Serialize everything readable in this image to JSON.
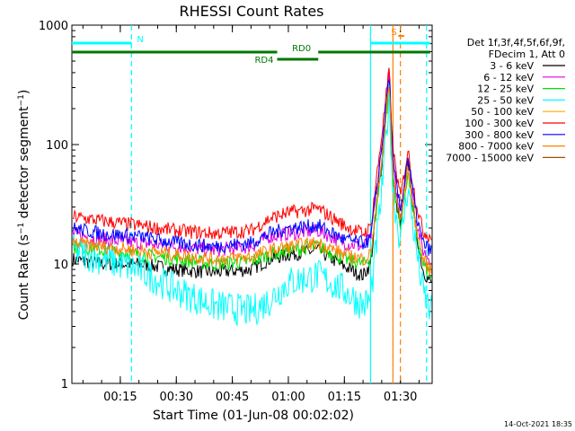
{
  "chart_data": {
    "type": "line",
    "title": "RHESSI Count Rates",
    "xlabel": "Start Time (01-Jun-08 00:02:02)",
    "ylabel": "Count Rate (s^-1 detector segment^-1)",
    "ylabel_main": "Count Rate (s",
    "ylabel_sup1": "−1",
    "ylabel_mid": " detector segment",
    "ylabel_sup2": "−1",
    "ylabel_end": ")",
    "y_scale": "log",
    "ylim": [
      1,
      1000
    ],
    "xlim": [
      "00:02:02",
      "01:38:30"
    ],
    "x_ticks": [
      "00:15",
      "00:30",
      "00:45",
      "01:00",
      "01:15",
      "01:30"
    ],
    "y_ticks": [
      "1",
      "10",
      "100",
      "1000"
    ],
    "legend_header": [
      "Det 1f,3f,4f,5f,6f,9f,",
      "FDecim 1, Att 0"
    ],
    "legend_position": "right",
    "series": [
      {
        "name": "3 - 6 keV",
        "color": "#000000",
        "x": [
          "00:02",
          "00:10",
          "00:20",
          "00:30",
          "00:40",
          "00:50",
          "00:55",
          "01:00",
          "01:08",
          "01:15",
          "01:20",
          "01:22",
          "01:25",
          "01:27",
          "01:28",
          "01:30",
          "01:32",
          "01:34",
          "01:36",
          "01:38"
        ],
        "y": [
          11,
          10,
          10,
          9,
          8.5,
          9,
          11,
          12,
          13,
          9.5,
          8,
          10,
          70,
          420,
          50,
          20,
          80,
          20,
          9,
          7
        ]
      },
      {
        "name": "6 - 12 keV",
        "color": "#e000e0",
        "x": [
          "00:02",
          "00:10",
          "00:20",
          "00:30",
          "00:40",
          "00:50",
          "00:55",
          "01:00",
          "01:08",
          "01:15",
          "01:20",
          "01:22",
          "01:25",
          "01:27",
          "01:28",
          "01:30",
          "01:32",
          "01:34",
          "01:36",
          "01:38"
        ],
        "y": [
          18,
          16,
          15,
          14,
          13,
          14,
          17,
          18,
          19,
          15,
          14,
          16,
          90,
          380,
          60,
          25,
          75,
          25,
          13,
          11
        ]
      },
      {
        "name": "12 - 25 keV",
        "color": "#00e000",
        "x": [
          "00:02",
          "00:10",
          "00:20",
          "00:30",
          "00:40",
          "00:50",
          "00:55",
          "01:00",
          "01:08",
          "01:15",
          "01:20",
          "01:22",
          "01:25",
          "01:27",
          "01:28",
          "01:30",
          "01:32",
          "01:34",
          "01:36",
          "01:38"
        ],
        "y": [
          14,
          13,
          12,
          11,
          10,
          10.5,
          12,
          13,
          14,
          11,
          10,
          11,
          70,
          300,
          50,
          20,
          60,
          20,
          10,
          8
        ]
      },
      {
        "name": "25 - 50 keV",
        "color": "#00ffff",
        "x": [
          "00:02",
          "00:10",
          "00:20",
          "00:30",
          "00:40",
          "00:50",
          "00:55",
          "01:00",
          "01:08",
          "01:15",
          "01:20",
          "01:22",
          "01:25",
          "01:27",
          "01:28",
          "01:30",
          "01:32",
          "01:34",
          "01:36",
          "01:38"
        ],
        "y": [
          13,
          11,
          9,
          6,
          4.5,
          4,
          5,
          7,
          8,
          6,
          4.5,
          5,
          40,
          250,
          40,
          15,
          45,
          15,
          6,
          4
        ]
      },
      {
        "name": "50 - 100 keV",
        "color": "#ffaa00",
        "x": [],
        "y": []
      },
      {
        "name": "100 - 300 keV",
        "color": "#ff0000",
        "x": [
          "00:02",
          "00:10",
          "00:20",
          "00:30",
          "00:40",
          "00:50",
          "00:55",
          "01:00",
          "01:08",
          "01:15",
          "01:20",
          "01:22",
          "01:25",
          "01:27",
          "01:28",
          "01:30",
          "01:32",
          "01:34",
          "01:36",
          "01:38"
        ],
        "y": [
          25,
          23,
          21,
          19,
          18,
          19,
          24,
          27,
          29,
          21,
          18,
          20,
          120,
          420,
          90,
          35,
          90,
          35,
          19,
          17
        ]
      },
      {
        "name": "300 - 800 keV",
        "color": "#0000ff",
        "x": [
          "00:02",
          "00:10",
          "00:20",
          "00:30",
          "00:40",
          "00:50",
          "00:55",
          "01:00",
          "01:08",
          "01:15",
          "01:20",
          "01:22",
          "01:25",
          "01:27",
          "01:28",
          "01:30",
          "01:32",
          "01:34",
          "01:36",
          "01:38"
        ],
        "y": [
          20,
          18,
          17,
          15,
          14,
          15,
          18,
          20,
          21,
          16,
          15,
          16,
          95,
          390,
          70,
          28,
          80,
          28,
          15,
          13
        ]
      },
      {
        "name": "800 - 7000 keV",
        "color": "#ff8000",
        "x": [
          "00:02",
          "00:10",
          "00:20",
          "00:30",
          "00:40",
          "00:50",
          "00:55",
          "01:00",
          "01:08",
          "01:15",
          "01:20",
          "01:22",
          "01:25",
          "01:27",
          "01:28",
          "01:30",
          "01:32",
          "01:34",
          "01:36",
          "01:38"
        ],
        "y": [
          15,
          14,
          13,
          12,
          11,
          11.5,
          13,
          14,
          15,
          12,
          11,
          12,
          75,
          320,
          55,
          22,
          65,
          22,
          11,
          9
        ]
      },
      {
        "name": "7000 - 15000 keV",
        "color": "#a05000",
        "x": [],
        "y": []
      }
    ],
    "annotations": {
      "bars": [
        {
          "label": "N",
          "color": "#00ffff",
          "from": "00:02",
          "to": "00:18"
        },
        {
          "label": "",
          "color": "#00ffff",
          "from": "01:22",
          "to": "01:38"
        },
        {
          "label": "RD0",
          "color": "#007700",
          "from": "00:02",
          "to": "01:38"
        },
        {
          "label": "RD4",
          "color": "#007700",
          "from": "00:57",
          "to": "01:08"
        },
        {
          "label": "S",
          "color": "#ff8000",
          "from": "01:28",
          "to": "01:31"
        }
      ],
      "vlines": [
        {
          "at": "00:18",
          "color": "#00ffff",
          "style": "dashed"
        },
        {
          "at": "01:22",
          "color": "#00ffff",
          "style": "solid"
        },
        {
          "at": "01:28",
          "color": "#ff8000",
          "style": "solid"
        },
        {
          "at": "01:30",
          "color": "#ff8000",
          "style": "dashed"
        },
        {
          "at": "01:37",
          "color": "#00ffff",
          "style": "dashed"
        }
      ]
    },
    "footer_stamp": "14-Oct-2021 18:35"
  }
}
